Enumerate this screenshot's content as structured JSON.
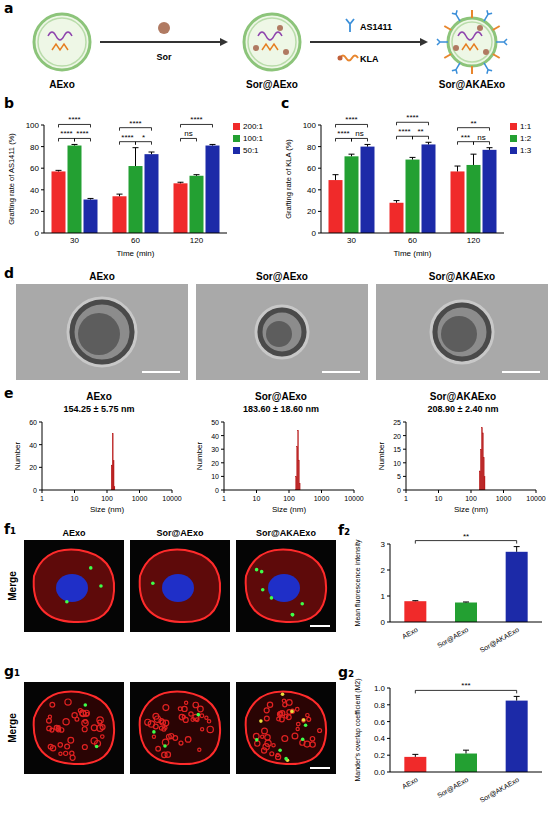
{
  "schematic": {
    "panel": "a",
    "nodes": [
      "AExo",
      "Sor@AExo",
      "Sor@AKAExo"
    ],
    "reagents": [
      "Sor",
      "AS1411",
      "KLA"
    ]
  },
  "tem": {
    "panel": "d",
    "titles": [
      "AExo",
      "Sor@AExo",
      "Sor@AKAExo"
    ]
  },
  "confocal": [
    {
      "panel": "f₁",
      "row_label": "Merge",
      "titles": [
        "AExo",
        "Sor@AExo",
        "Sor@AKAExo"
      ]
    },
    {
      "panel": "g₁",
      "row_label": "Merge"
    }
  ],
  "chart_data": [
    {
      "panel": "b",
      "type": "bar",
      "x_label": "Time (min)",
      "y_label": "Grafting rate of AS1411 (%)",
      "categories": [
        "30",
        "60",
        "120"
      ],
      "series": [
        {
          "name": "200:1",
          "color": "#f02a2a",
          "values": [
            57,
            34,
            46
          ],
          "errors": [
            1,
            2,
            1
          ]
        },
        {
          "name": "100:1",
          "color": "#23a032",
          "values": [
            81,
            62,
            53
          ],
          "errors": [
            1,
            17,
            1
          ]
        },
        {
          "name": "50:1",
          "color": "#1c2aa8",
          "values": [
            31,
            73,
            81
          ],
          "errors": [
            1,
            2,
            1
          ]
        }
      ],
      "ylim": [
        0,
        100
      ],
      "yticks": [
        0,
        20,
        40,
        60,
        80,
        100
      ],
      "legend": "right",
      "annotations": [
        {
          "category": 0,
          "between": [
            0,
            2
          ],
          "label": "****"
        },
        {
          "category": 0,
          "between": [
            0,
            1
          ],
          "label": "****"
        },
        {
          "category": 0,
          "between": [
            1,
            2
          ],
          "label": "****"
        },
        {
          "category": 1,
          "between": [
            0,
            2
          ],
          "label": "****"
        },
        {
          "category": 1,
          "between": [
            0,
            1
          ],
          "label": "****"
        },
        {
          "category": 1,
          "between": [
            1,
            2
          ],
          "label": "*"
        },
        {
          "category": 2,
          "between": [
            0,
            2
          ],
          "label": "****"
        },
        {
          "category": 2,
          "between": [
            0,
            1
          ],
          "label": "ns"
        }
      ]
    },
    {
      "panel": "c",
      "type": "bar",
      "x_label": "Time (min)",
      "y_label": "Grafting rate of KLA (%)",
      "categories": [
        "30",
        "60",
        "120"
      ],
      "series": [
        {
          "name": "1:1",
          "color": "#f02a2a",
          "values": [
            49,
            28,
            57
          ],
          "errors": [
            5,
            2,
            5
          ]
        },
        {
          "name": "1:2",
          "color": "#23a032",
          "values": [
            71,
            68,
            63
          ],
          "errors": [
            2,
            2,
            10
          ]
        },
        {
          "name": "1:3",
          "color": "#1c2aa8",
          "values": [
            80,
            82,
            77
          ],
          "errors": [
            2,
            2,
            2
          ]
        }
      ],
      "ylim": [
        0,
        100
      ],
      "yticks": [
        0,
        20,
        40,
        60,
        80,
        100
      ],
      "legend": "right",
      "annotations": [
        {
          "category": 0,
          "between": [
            0,
            2
          ],
          "label": "****"
        },
        {
          "category": 0,
          "between": [
            0,
            1
          ],
          "label": "****"
        },
        {
          "category": 0,
          "between": [
            1,
            2
          ],
          "label": "ns"
        },
        {
          "category": 1,
          "between": [
            0,
            2
          ],
          "label": "****"
        },
        {
          "category": 1,
          "between": [
            0,
            1
          ],
          "label": "****"
        },
        {
          "category": 1,
          "between": [
            1,
            2
          ],
          "label": "**"
        },
        {
          "category": 2,
          "between": [
            0,
            2
          ],
          "label": "**"
        },
        {
          "category": 2,
          "between": [
            0,
            1
          ],
          "label": "***"
        },
        {
          "category": 2,
          "between": [
            1,
            2
          ],
          "label": "ns"
        }
      ]
    },
    {
      "panel": "e",
      "type": "histogram",
      "title": "AExo",
      "subtitle": "154.25 ± 5.75 nm",
      "x_label": "Size (nm)",
      "y_label": "Number",
      "bins": [
        135,
        145,
        155,
        165,
        175
      ],
      "counts": [
        22,
        50,
        26,
        3
      ],
      "color": "#b40f0f",
      "log": "x",
      "xlim": [
        1,
        10000
      ],
      "xticks": [
        1,
        10,
        100,
        1000,
        10000
      ],
      "ylim": [
        0,
        60
      ],
      "yticks": [
        0,
        20,
        40,
        60
      ]
    },
    {
      "type": "histogram",
      "title": "Sor@AExo",
      "subtitle": "183.60 ± 18.60 nm",
      "x_label": "Size (nm)",
      "y_label": "Number",
      "bins": [
        160,
        172,
        184,
        196,
        208,
        220
      ],
      "counts": [
        10,
        32,
        44,
        22,
        5
      ],
      "color": "#b40f0f",
      "log": "x",
      "xlim": [
        1,
        10000
      ],
      "xticks": [
        1,
        10,
        100,
        1000,
        10000
      ],
      "ylim": [
        0,
        50
      ],
      "yticks": [
        0,
        10,
        20,
        30,
        40,
        50
      ]
    },
    {
      "type": "histogram",
      "title": "Sor@AKAExo",
      "subtitle": "208.90 ± 2.40 nm",
      "x_label": "Size (nm)",
      "y_label": "Number",
      "bins": [
        180,
        195,
        210,
        225,
        240,
        255,
        270
      ],
      "counts": [
        7,
        15,
        23,
        21,
        12,
        5
      ],
      "color": "#b40f0f",
      "log": "x",
      "xlim": [
        1,
        10000
      ],
      "xticks": [
        1,
        10,
        100,
        1000,
        10000
      ],
      "ylim": [
        0,
        25
      ],
      "yticks": [
        0,
        5,
        10,
        15,
        20,
        25
      ]
    },
    {
      "panel": "f₂",
      "type": "bar",
      "y_label": "Mean fluorescence intensity",
      "categories": [
        "AExo",
        "Sor@AExo",
        "Sor@AKAExo"
      ],
      "values": [
        0.8,
        0.75,
        2.7
      ],
      "errors": [
        0.02,
        0.02,
        0.2
      ],
      "colors": [
        "#f02a2a",
        "#23a032",
        "#1c2aa8"
      ],
      "ylim": [
        0,
        3
      ],
      "yticks": [
        0,
        1,
        2,
        3
      ],
      "annotations": [
        {
          "between": [
            0,
            2
          ],
          "label": "**"
        }
      ]
    },
    {
      "panel": "g₂",
      "type": "bar",
      "y_label": "Mander's overlap coefficient (M2)",
      "categories": [
        "AExo",
        "Sor@AExo",
        "Sor@AKAExo"
      ],
      "values": [
        0.18,
        0.22,
        0.85
      ],
      "errors": [
        0.03,
        0.04,
        0.05
      ],
      "colors": [
        "#f02a2a",
        "#23a032",
        "#1c2aa8"
      ],
      "ylim": [
        0,
        1
      ],
      "yticks": [
        {
          "value": 0,
          "label": "0.0"
        },
        0.2,
        0.4,
        0.6,
        0.8,
        {
          "value": 1,
          "label": "1.0"
        }
      ],
      "annotations": [
        {
          "between": [
            0,
            2
          ],
          "label": "***"
        }
      ]
    }
  ]
}
